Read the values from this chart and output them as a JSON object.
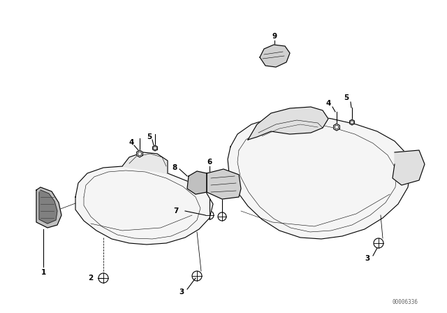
{
  "bg_color": "#ffffff",
  "line_color": "#000000",
  "fig_width": 6.4,
  "fig_height": 4.48,
  "dpi": 100,
  "watermark": "00006336"
}
